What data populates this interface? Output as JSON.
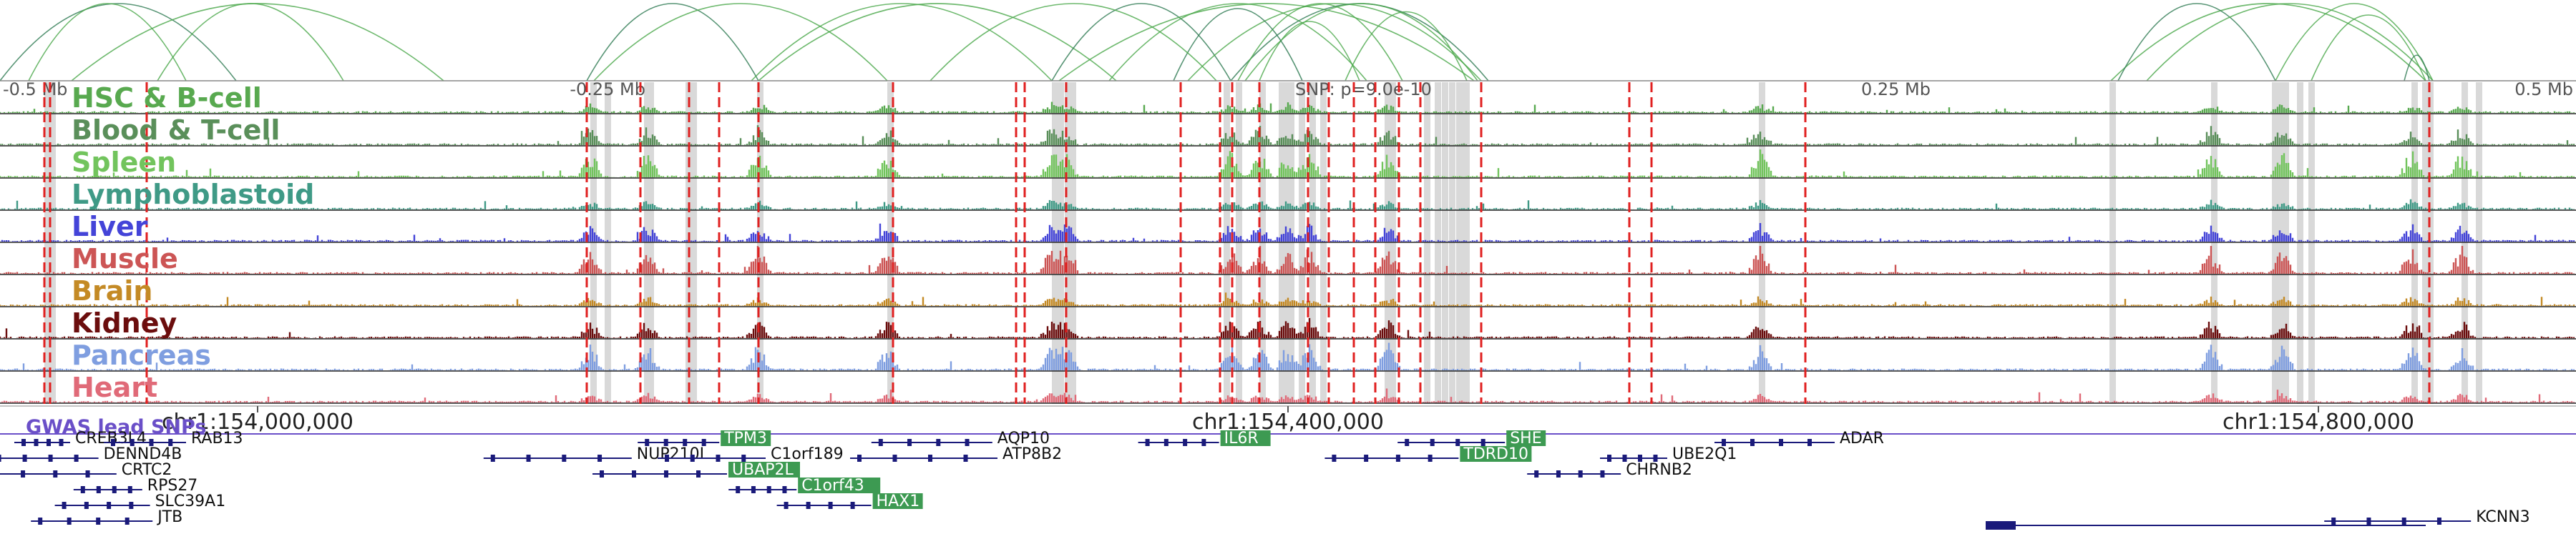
{
  "ruler": {
    "labels": [
      {
        "text": "-0.5 Mb",
        "pos": 0.0
      },
      {
        "text": "-0.25 Mb",
        "pos": 0.25
      },
      {
        "text": "0.25 Mb",
        "pos": 0.75
      },
      {
        "text": "0.5 Mb",
        "pos": 1.0
      }
    ],
    "snp_label": "SNP: p=9.0e-10",
    "snp_pos": 0.5
  },
  "tracks": [
    {
      "label": "HSC & B-cell",
      "color": "#58a94f"
    },
    {
      "label": "Blood & T-cell",
      "color": "#5a8f5a"
    },
    {
      "label": "Spleen",
      "color": "#72c45d"
    },
    {
      "label": "Lymphoblastoid",
      "color": "#3f9a86"
    },
    {
      "label": "Liver",
      "color": "#4444d8"
    },
    {
      "label": "Muscle",
      "color": "#cc5555"
    },
    {
      "label": "Brain",
      "color": "#c48a25"
    },
    {
      "label": "Kidney",
      "color": "#6b0d0d"
    },
    {
      "label": "Pancreas",
      "color": "#7f9ee0"
    },
    {
      "label": "Heart",
      "color": "#e06a78"
    }
  ],
  "chrom_ticks": [
    {
      "text": "chr1:154,000,000",
      "pos": 0.1
    },
    {
      "text": "chr1:154,400,000",
      "pos": 0.5
    },
    {
      "text": "chr1:154,800,000",
      "pos": 0.9
    }
  ],
  "gwas_label": "GWAS lead SNPs",
  "genes": [
    {
      "name": "CREB3L4",
      "pos": 0.025,
      "row": 0,
      "hl": false
    },
    {
      "name": "RAB13",
      "pos": 0.07,
      "row": 0,
      "hl": false
    },
    {
      "name": "DENND4B",
      "pos": 0.036,
      "row": 1,
      "hl": false
    },
    {
      "name": "CRTC2",
      "pos": 0.043,
      "row": 2,
      "hl": false
    },
    {
      "name": "RPS27",
      "pos": 0.053,
      "row": 3,
      "hl": false
    },
    {
      "name": "SLC39A1",
      "pos": 0.056,
      "row": 4,
      "hl": false
    },
    {
      "name": "JTB",
      "pos": 0.057,
      "row": 5,
      "hl": false
    },
    {
      "name": "NUP210L",
      "pos": 0.243,
      "row": 1,
      "hl": false
    },
    {
      "name": "TPM3",
      "pos": 0.277,
      "row": 0,
      "hl": true
    },
    {
      "name": "C1orf189",
      "pos": 0.295,
      "row": 1,
      "hl": false
    },
    {
      "name": "UBAP2L",
      "pos": 0.28,
      "row": 2,
      "hl": true
    },
    {
      "name": "C1orf43",
      "pos": 0.307,
      "row": 3,
      "hl": true
    },
    {
      "name": "HAX1",
      "pos": 0.336,
      "row": 4,
      "hl": true
    },
    {
      "name": "AQP10",
      "pos": 0.383,
      "row": 0,
      "hl": false
    },
    {
      "name": "ATP8B2",
      "pos": 0.385,
      "row": 1,
      "hl": false
    },
    {
      "name": "IL6R",
      "pos": 0.471,
      "row": 0,
      "hl": true
    },
    {
      "name": "SHE",
      "pos": 0.582,
      "row": 0,
      "hl": true
    },
    {
      "name": "TDRD10",
      "pos": 0.564,
      "row": 1,
      "hl": true
    },
    {
      "name": "UBE2Q1",
      "pos": 0.645,
      "row": 1,
      "hl": false
    },
    {
      "name": "CHRNB2",
      "pos": 0.627,
      "row": 2,
      "hl": false
    },
    {
      "name": "ADAR",
      "pos": 0.71,
      "row": 0,
      "hl": false
    },
    {
      "name": "KCNN3",
      "pos": 0.957,
      "row": 5,
      "hl": false
    }
  ],
  "colors": {
    "arc": "#4aa84a",
    "arc_dark": "#2e7a52",
    "red_marker": "#e02020",
    "highlight_band": "#d9d9d9",
    "gene_struct": "#1a1a7a",
    "gene_highlight": "#3d9a52",
    "gwas": "#6a4fc8"
  }
}
